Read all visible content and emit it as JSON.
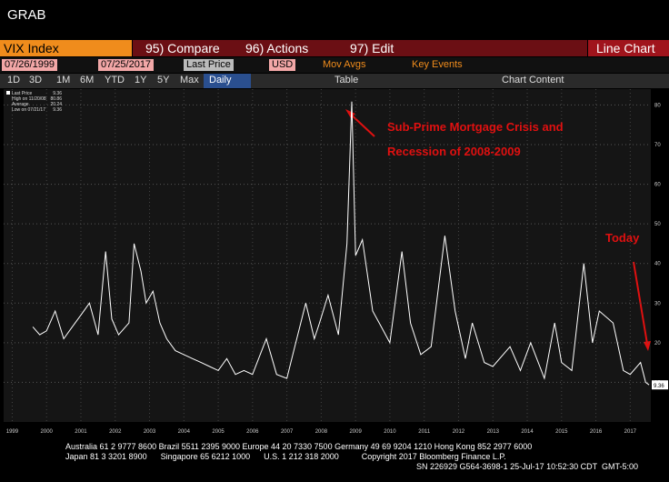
{
  "header": {
    "title": "GRAB"
  },
  "toolbar": {
    "security": "VIX Index",
    "menus": [
      "95) Compare",
      "96) Actions",
      "97) Edit"
    ],
    "view": "Line Chart",
    "start_date": "07/26/1999",
    "end_date": "07/25/2017",
    "field": "Last Price",
    "currency": "USD",
    "options": [
      "Mov Avgs",
      "Key Events"
    ],
    "periods": [
      "1D",
      "3D",
      "1M",
      "6M",
      "YTD",
      "1Y",
      "5Y",
      "Max"
    ],
    "frequency": "Daily",
    "table": "Table",
    "chart_content": "Chart Content"
  },
  "chart_data": {
    "type": "line",
    "color": "#ffffff",
    "grid": true,
    "legend_items": [
      {
        "label": "Last Price",
        "value": 9.36
      },
      {
        "label": "High on 11/20/08",
        "value": 80.86
      },
      {
        "label": "Average",
        "value": 20.24
      },
      {
        "label": "Low on 07/21/17",
        "value": 9.36
      }
    ],
    "annotations": [
      "Sub-Prime Mortgage Crisis and",
      "Recession of 2008-2009",
      "Today"
    ],
    "x": [
      1999.6,
      1999.8,
      2000.0,
      2000.25,
      2000.5,
      2000.75,
      2001.0,
      2001.25,
      2001.5,
      2001.72,
      2001.9,
      2002.1,
      2002.4,
      2002.55,
      2002.75,
      2002.9,
      2003.1,
      2003.3,
      2003.5,
      2003.75,
      2004.0,
      2004.25,
      2004.5,
      2004.75,
      2005.0,
      2005.25,
      2005.5,
      2005.75,
      2006.0,
      2006.4,
      2006.7,
      2007.0,
      2007.2,
      2007.55,
      2007.8,
      2007.95,
      2008.2,
      2008.5,
      2008.75,
      2008.89,
      2009.0,
      2009.2,
      2009.5,
      2009.75,
      2010.0,
      2010.35,
      2010.6,
      2010.9,
      2011.2,
      2011.6,
      2011.9,
      2012.2,
      2012.4,
      2012.75,
      2013.0,
      2013.5,
      2013.8,
      2014.1,
      2014.5,
      2014.8,
      2015.0,
      2015.3,
      2015.65,
      2015.9,
      2016.1,
      2016.5,
      2016.8,
      2017.0,
      2017.3,
      2017.45,
      2017.55
    ],
    "values": [
      24,
      22,
      23,
      28,
      21,
      24,
      27,
      30,
      22,
      43,
      26,
      22,
      25,
      45,
      38,
      30,
      33,
      25,
      21,
      18,
      17,
      16,
      15,
      14,
      13,
      16,
      12,
      13,
      12,
      21,
      12,
      11,
      18,
      30,
      21,
      25,
      32,
      22,
      45,
      80.86,
      42,
      46,
      28,
      24,
      20,
      43,
      25,
      17,
      19,
      47,
      28,
      16,
      25,
      15,
      14,
      19,
      13,
      20,
      11,
      25,
      15,
      13,
      40,
      20,
      28,
      25,
      13,
      12,
      15,
      10,
      9.36
    ],
    "xlim": [
      1998.75,
      2017.6
    ],
    "ylim": [
      0,
      84
    ],
    "xticks": [
      1999,
      2000,
      2001,
      2002,
      2003,
      2004,
      2005,
      2006,
      2007,
      2008,
      2009,
      2010,
      2011,
      2012,
      2013,
      2014,
      2015,
      2016,
      2017
    ],
    "yticks": [
      10,
      20,
      30,
      40,
      50,
      60,
      70,
      80
    ]
  },
  "footer": {
    "lines": [
      "Australia 61 2 9777 8600 Brazil 5511 2395 9000 Europe 44 20 7330 7500 Germany 49 69 9204 1210 Hong Kong 852 2977 6000",
      "Japan 81 3 3201 8900      Singapore 65 6212 1000      U.S. 1 212 318 2000          Copyright 2017 Bloomberg Finance L.P.",
      "SN 226929 G564-3698-1 25-Jul-17 10:52:30 CDT  GMT-5:00"
    ]
  }
}
